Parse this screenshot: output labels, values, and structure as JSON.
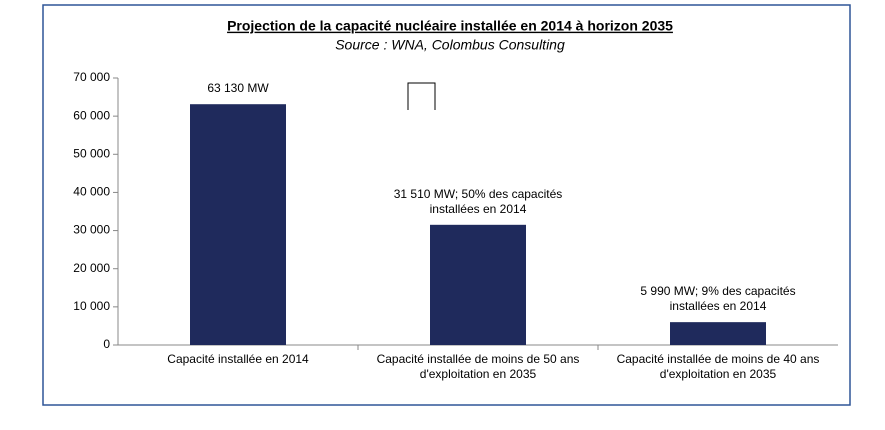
{
  "chart_data": {
    "type": "bar",
    "title": "Projection de la capacité nucléaire installée en 2014 à horizon 2035",
    "subtitle": "Source : WNA, Colombus Consulting",
    "categories": [
      "Capacité installée en 2014",
      "Capacité installée de moins de 50 ans d'exploitation en 2035",
      "Capacité installée de moins de 40 ans d'exploitation en 2035"
    ],
    "values": [
      63130,
      31510,
      5990
    ],
    "value_labels": [
      "63 130 MW",
      "31 510 MW; 50% des capacités installées en 2014",
      "5 990 MW; 9% des capacités installées en 2014"
    ],
    "color": "#1f2a5c",
    "ylim": [
      0,
      70000
    ],
    "yticks": [
      0,
      {
        "value": 10000,
        "label": "10 000"
      },
      {
        "value": 20000,
        "label": "20 000"
      },
      {
        "value": 30000,
        "label": "30 000"
      },
      {
        "value": 40000,
        "label": "40 000"
      },
      {
        "value": 50000,
        "label": "50 000"
      },
      {
        "value": 60000,
        "label": "60 000"
      },
      {
        "value": 70000,
        "label": "70 000"
      }
    ],
    "grid": false
  }
}
